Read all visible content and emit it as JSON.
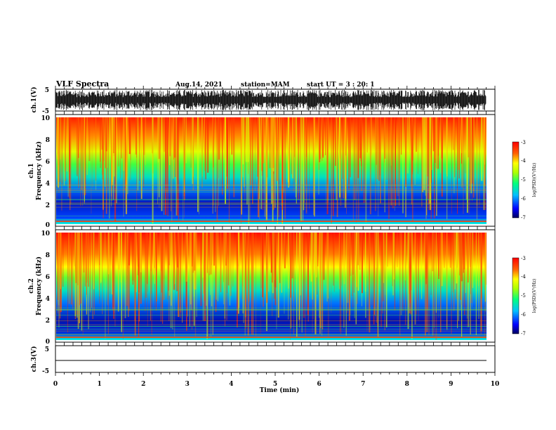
{
  "header": {
    "title": "VLF Spectra",
    "date": "Aug.14, 2021",
    "station": "station=MAM",
    "start": "start UT =  3 : 20: 1"
  },
  "colors": {
    "low": "#000080",
    "mid_low": "#0000ff",
    "mid": "#00ffff",
    "mid_green": "#00ff00",
    "mid_high": "#ffff00",
    "high": "#ff0000"
  },
  "chart_data": [
    {
      "type": "line",
      "panel": "waveform-ch1",
      "ylabel": "ch.1(V)",
      "ylim": [
        -5,
        5
      ],
      "yticks": [
        "5",
        "-5"
      ],
      "xlim": [
        0,
        10
      ],
      "description_values": {
        "amplitude_range": [
          -5,
          5
        ]
      }
    },
    {
      "type": "heatmap",
      "panel": "spectrogram-ch1",
      "ylabel": "ch.1\nFrequency (kHz)",
      "ylabel_line1": "ch.1",
      "ylabel_line2": "Frequency (kHz)",
      "ylim": [
        0,
        10
      ],
      "yticks": [
        "0",
        "2",
        "4",
        "6",
        "8",
        "10"
      ],
      "xlim": [
        0,
        9.8
      ],
      "colorbar": {
        "label": "log(PSD)(V²/Hz)",
        "range": [
          -7,
          -3
        ],
        "ticks": [
          "-3",
          "-4",
          "-5",
          "-6",
          "-7"
        ]
      }
    },
    {
      "type": "heatmap",
      "panel": "spectrogram-ch2",
      "ylabel_line1": "ch.2",
      "ylabel_line2": "Frequency (kHz)",
      "ylim": [
        0,
        10
      ],
      "yticks": [
        "0",
        "2",
        "4",
        "6",
        "8",
        "10"
      ],
      "xlim": [
        0,
        9.8
      ],
      "colorbar": {
        "label": "log(PSD)(V²/Hz)",
        "range": [
          -7,
          -3
        ],
        "ticks": [
          "-3",
          "-4",
          "-5",
          "-6",
          "-7"
        ]
      }
    },
    {
      "type": "line",
      "panel": "waveform-ch3",
      "ylabel": "ch.3(V)",
      "ylim": [
        -5,
        5
      ],
      "yticks": [
        "5",
        "-5"
      ],
      "x": [
        0,
        9.8
      ],
      "y": [
        -2,
        -2
      ]
    }
  ],
  "xaxis": {
    "label": "Time (min)",
    "ticks": [
      "0",
      "1",
      "2",
      "3",
      "4",
      "5",
      "6",
      "7",
      "8",
      "9",
      "10"
    ],
    "range": [
      0,
      10
    ]
  }
}
